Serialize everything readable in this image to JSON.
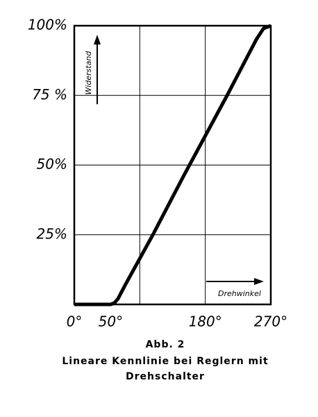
{
  "chart_data": {
    "type": "line",
    "x": [
      0,
      50,
      55,
      60,
      65,
      70,
      108,
      150,
      210,
      250,
      260,
      270
    ],
    "series": [
      {
        "color": "#000000",
        "values": [
          0,
          0,
          0.5,
          2,
          4.5,
          7,
          25,
          46,
          75,
          95,
          99,
          100
        ]
      }
    ],
    "xlim": [
      0,
      270
    ],
    "xticks": [
      {
        "value": 0,
        "label": "0°"
      },
      {
        "value": 50,
        "label": "50°"
      },
      {
        "value": 180,
        "label": "180°"
      },
      {
        "value": 270,
        "label": "270°"
      }
    ],
    "xgrid": [
      90,
      180
    ],
    "ylim": [
      0,
      100
    ],
    "yticks": [
      {
        "value": 25,
        "label": "25%"
      },
      {
        "value": 50,
        "label": "50%"
      },
      {
        "value": 75,
        "label": "75 %"
      },
      {
        "value": 100,
        "label": "100%"
      }
    ],
    "grid": true,
    "ylabel": "Widerstand",
    "xlabel": "Drehwinkel",
    "caption_label": "Abb. 2",
    "caption_lines": [
      "Lineare Kennlinie bei Reglern mit",
      "Drehschalter"
    ]
  }
}
